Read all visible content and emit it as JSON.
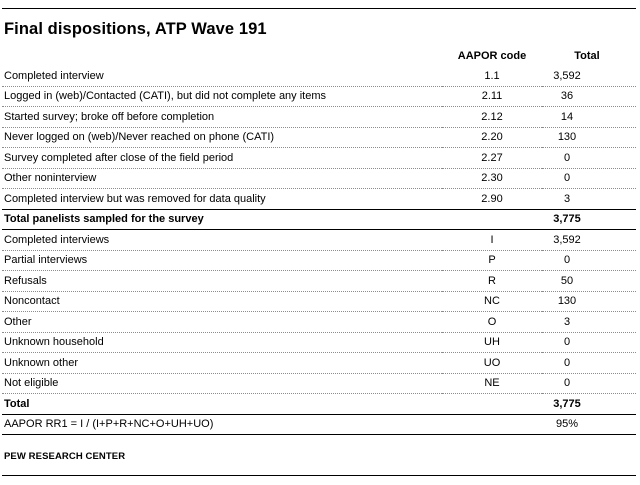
{
  "title": "Final dispositions, ATP Wave 191",
  "headers": {
    "code": "AAPOR code",
    "total": "Total"
  },
  "rows": [
    {
      "label": "Completed interview",
      "code": "1.1",
      "total": "3,592"
    },
    {
      "label": "Logged in (web)/Contacted (CATI), but did not complete any items",
      "code": "2.11",
      "total": "36"
    },
    {
      "label": "Started survey; broke off before completion",
      "code": "2.12",
      "total": "14"
    },
    {
      "label": "Never logged on (web)/Never reached on phone (CATI)",
      "code": "2.20",
      "total": "130"
    },
    {
      "label": "Survey completed after close of the field period",
      "code": "2.27",
      "total": "0"
    },
    {
      "label": "Other noninterview",
      "code": "2.30",
      "total": "0"
    },
    {
      "label": "Completed interview but was removed for data quality",
      "code": "2.90",
      "total": "3"
    },
    {
      "label": "Total panelists sampled for the survey",
      "code": "",
      "total": "3,775"
    },
    {
      "label": "Completed interviews",
      "code": "I",
      "total": "3,592"
    },
    {
      "label": "Partial interviews",
      "code": "P",
      "total": "0"
    },
    {
      "label": "Refusals",
      "code": "R",
      "total": "50"
    },
    {
      "label": "Noncontact",
      "code": "NC",
      "total": "130"
    },
    {
      "label": "Other",
      "code": "O",
      "total": "3"
    },
    {
      "label": "Unknown household",
      "code": "UH",
      "total": "0"
    },
    {
      "label": "Unknown other",
      "code": "UO",
      "total": "0"
    },
    {
      "label": "Not eligible",
      "code": "NE",
      "total": "0"
    },
    {
      "label": "Total",
      "code": "",
      "total": "3,775"
    },
    {
      "label": "AAPOR RR1 = I / (I+P+R+NC+O+UH+UO)",
      "code": "",
      "total": "95%"
    }
  ],
  "source": "PEW RESEARCH CENTER"
}
